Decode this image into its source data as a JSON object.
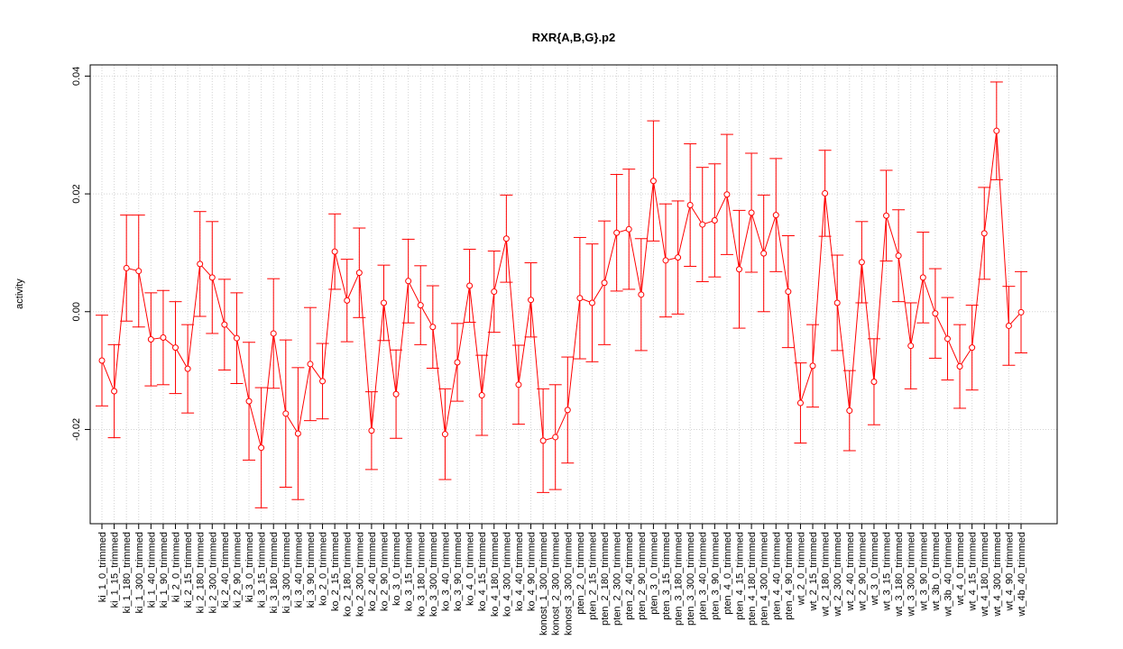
{
  "chart_data": {
    "type": "line",
    "title": "RXR{A,B,G}.p2",
    "ylabel": "activity",
    "categories": [
      "ki_1_0_trimmed",
      "ki_1_15_trimmed",
      "ki_1_180_trimmed",
      "ki_1_300_trimmed",
      "ki_1_40_trimmed",
      "ki_1_90_trimmed",
      "ki_2_0_trimmed",
      "ki_2_15_trimmed",
      "ki_2_180_trimmed",
      "ki_2_300_trimmed",
      "ki_2_40_trimmed",
      "ki_2_90_trimmed",
      "ki_3_0_trimmed",
      "ki_3_15_trimmed",
      "ki_3_180_trimmed",
      "ki_3_300_trimmed",
      "ki_3_40_trimmed",
      "ki_3_90_trimmed",
      "ko_2_0_trimmed",
      "ko_2_15_trimmed",
      "ko_2_180_trimmed",
      "ko_2_300_trimmed",
      "ko_2_40_trimmed",
      "ko_2_90_trimmed",
      "ko_3_0_trimmed",
      "ko_3_15_trimmed",
      "ko_3_180_trimmed",
      "ko_3_300_trimmed",
      "ko_3_40_trimmed",
      "ko_3_90_trimmed",
      "ko_4_0_trimmed",
      "ko_4_15_trimmed",
      "ko_4_180_trimmed",
      "ko_4_300_trimmed",
      "ko_4_40_trimmed",
      "ko_4_90_trimmed",
      "konost_1_300_trimmed",
      "konost_2_300_trimmed",
      "konost_3_300_trimmed",
      "pten_2_0_trimmed",
      "pten_2_15_trimmed",
      "pten_2_180_trimmed",
      "pten_2_300_trimmed",
      "pten_2_40_trimmed",
      "pten_2_90_trimmed",
      "pten_3_0_trimmed",
      "pten_3_15_trimmed",
      "pten_3_180_trimmed",
      "pten_3_300_trimmed",
      "pten_3_40_trimmed",
      "pten_3_90_trimmed",
      "pten_4_0_trimmed",
      "pten_4_15_trimmed",
      "pten_4_180_trimmed",
      "pten_4_300_trimmed",
      "pten_4_40_trimmed",
      "pten_4_90_trimmed",
      "wt_2_0_trimmed",
      "wt_2_15_trimmed",
      "wt_2_180_trimmed",
      "wt_2_300_trimmed",
      "wt_2_40_trimmed",
      "wt_2_90_trimmed",
      "wt_3_0_trimmed",
      "wt_3_15_trimmed",
      "wt_3_180_trimmed",
      "wt_3_300_trimmed",
      "wt_3_90_trimmed",
      "wt_3b_0_trimmed",
      "wt_3b_40_trimmed",
      "wt_4_0_trimmed",
      "wt_4_15_trimmed",
      "wt_4_180_trimmed",
      "wt_4_300_trimmed",
      "wt_4_90_trimmed",
      "wt_4b_40_trimmed"
    ],
    "values": [
      -0.0083,
      -0.0135,
      0.0074,
      0.0069,
      -0.0047,
      -0.0044,
      -0.0061,
      -0.0097,
      0.0081,
      0.0058,
      -0.0022,
      -0.0045,
      -0.0152,
      -0.0231,
      -0.0037,
      -0.0173,
      -0.0207,
      -0.0089,
      -0.0118,
      0.0102,
      0.0019,
      0.0066,
      -0.0202,
      0.0015,
      -0.014,
      0.0052,
      0.0011,
      -0.0026,
      -0.0208,
      -0.0086,
      0.0044,
      -0.0142,
      0.0034,
      0.0124,
      -0.0124,
      0.002,
      -0.0219,
      -0.0213,
      -0.0167,
      0.0023,
      0.0015,
      0.0049,
      0.0134,
      0.014,
      0.0029,
      0.0222,
      0.0087,
      0.0092,
      0.0181,
      0.0148,
      0.0155,
      0.0199,
      0.0072,
      0.0168,
      0.0099,
      0.0164,
      0.0034,
      -0.0155,
      -0.0092,
      0.0201,
      0.0015,
      -0.0168,
      0.0084,
      -0.0119,
      0.0163,
      0.0095,
      -0.0058,
      0.0058,
      -0.0003,
      -0.0046,
      -0.0093,
      -0.0061,
      0.0133,
      0.0307,
      -0.0024,
      -0.0001
    ],
    "errors": [
      0.0077,
      0.0079,
      0.009,
      0.0095,
      0.0079,
      0.008,
      0.0078,
      0.0075,
      0.0089,
      0.0095,
      0.0077,
      0.0077,
      0.01,
      0.0102,
      0.0093,
      0.0125,
      0.0112,
      0.0096,
      0.0064,
      0.0064,
      0.007,
      0.0076,
      0.0066,
      0.0064,
      0.0075,
      0.0071,
      0.0067,
      0.007,
      0.0077,
      0.0066,
      0.0062,
      0.0068,
      0.0069,
      0.0074,
      0.0067,
      0.0063,
      0.0088,
      0.0089,
      0.009,
      0.0103,
      0.01,
      0.0105,
      0.0099,
      0.0102,
      0.0095,
      0.0102,
      0.0096,
      0.0096,
      0.0104,
      0.0097,
      0.0096,
      0.0102,
      0.01,
      0.0101,
      0.0099,
      0.0096,
      0.0095,
      0.0068,
      0.007,
      0.0073,
      0.0081,
      0.0068,
      0.0069,
      0.0073,
      0.0077,
      0.0078,
      0.0073,
      0.0077,
      0.0076,
      0.007,
      0.0071,
      0.0072,
      0.0078,
      0.0083,
      0.0067,
      0.0069
    ],
    "color": "#ff0000",
    "ylim": [
      -0.036,
      0.0419
    ],
    "yticks": [
      -0.02,
      {
        "value": 0,
        "label": "0.00"
      },
      0.02,
      0.04
    ],
    "grid": true
  }
}
